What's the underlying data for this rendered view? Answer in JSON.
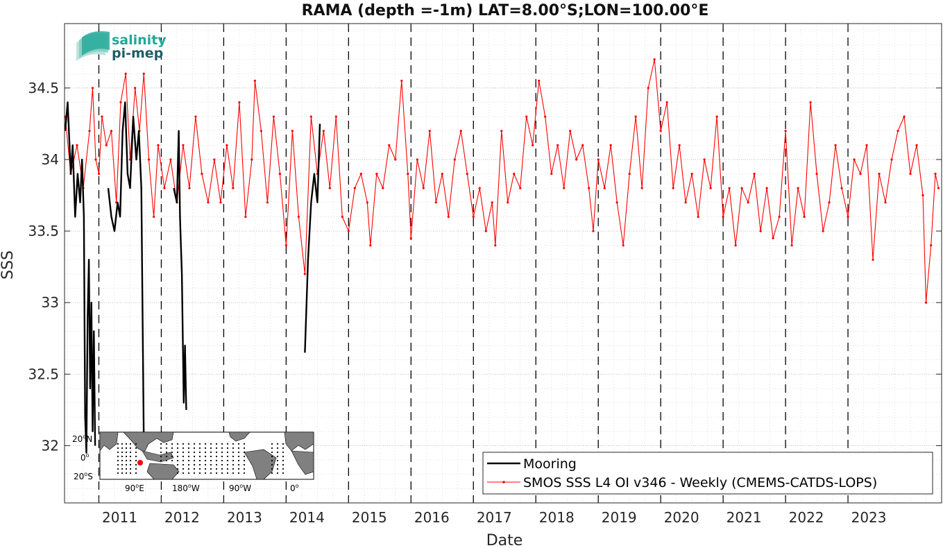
{
  "chart_data": {
    "type": "line",
    "title": "RAMA (depth =-1m) LAT=8.00°S;LON=100.00°E",
    "xlabel": "Date",
    "ylabel": "SSS",
    "xlim": [
      2010.45,
      2024.5
    ],
    "ylim": [
      31.6,
      34.95
    ],
    "grid": true,
    "legend_position": "bottom-right",
    "x_tick_labels": [
      "2011",
      "2012",
      "2013",
      "2014",
      "2015",
      "2016",
      "2017",
      "2018",
      "2019",
      "2020",
      "2021",
      "2022",
      "2023"
    ],
    "x_ticks": [
      2011,
      2012,
      2013,
      2014,
      2015,
      2016,
      2017,
      2018,
      2019,
      2020,
      2021,
      2022,
      2023
    ],
    "y_tick_labels": [
      "32",
      "32.5",
      "33",
      "33.5",
      "34",
      "34.5"
    ],
    "y_ticks": [
      32,
      32.5,
      33,
      33.5,
      34,
      34.5
    ],
    "year_dividers": [
      2011,
      2012,
      2013,
      2014,
      2015,
      2016,
      2017,
      2018,
      2019,
      2020,
      2021,
      2022,
      2023
    ],
    "series": [
      {
        "name": "Mooring",
        "color": "#000000",
        "segments": [
          [
            [
              2010.46,
              34.2
            ],
            [
              2010.5,
              34.4
            ],
            [
              2010.55,
              33.9
            ],
            [
              2010.58,
              34.1
            ],
            [
              2010.62,
              33.6
            ],
            [
              2010.66,
              33.9
            ],
            [
              2010.7,
              33.7
            ],
            [
              2010.73,
              34.0
            ],
            [
              2010.76,
              33.6
            ],
            [
              2010.78,
              32.2
            ],
            [
              2010.8,
              31.95
            ],
            [
              2010.82,
              32.9
            ],
            [
              2010.84,
              33.3
            ],
            [
              2010.86,
              32.4
            ],
            [
              2010.88,
              33.0
            ],
            [
              2010.9,
              32.1
            ],
            [
              2010.92,
              32.8
            ],
            [
              2010.94,
              32.0
            ]
          ],
          [
            [
              2011.15,
              33.8
            ],
            [
              2011.2,
              33.6
            ],
            [
              2011.25,
              33.5
            ],
            [
              2011.3,
              33.7
            ],
            [
              2011.34,
              33.6
            ],
            [
              2011.38,
              34.2
            ],
            [
              2011.42,
              34.4
            ],
            [
              2011.46,
              33.9
            ],
            [
              2011.5,
              33.8
            ],
            [
              2011.55,
              34.3
            ],
            [
              2011.6,
              34.0
            ],
            [
              2011.64,
              34.2
            ],
            [
              2011.68,
              33.8
            ],
            [
              2011.72,
              32.0
            ]
          ],
          [
            [
              2012.2,
              33.8
            ],
            [
              2012.25,
              33.7
            ],
            [
              2012.28,
              34.2
            ],
            [
              2012.3,
              33.6
            ],
            [
              2012.33,
              33.2
            ],
            [
              2012.36,
              32.3
            ],
            [
              2012.38,
              32.7
            ],
            [
              2012.4,
              32.25
            ]
          ],
          [
            [
              2014.3,
              32.65
            ],
            [
              2014.35,
              33.3
            ],
            [
              2014.4,
              33.7
            ],
            [
              2014.45,
              33.9
            ],
            [
              2014.5,
              33.7
            ],
            [
              2014.54,
              34.25
            ]
          ]
        ]
      },
      {
        "name": "SMOS SSS L4 OI v346 - Weekly (CMEMS-CATDS-LOPS)",
        "color": "#ff0000",
        "points": [
          [
            2010.46,
            34.3
          ],
          [
            2010.55,
            33.9
          ],
          [
            2010.65,
            34.1
          ],
          [
            2010.75,
            33.8
          ],
          [
            2010.85,
            34.2
          ],
          [
            2010.9,
            34.5
          ],
          [
            2010.95,
            34.0
          ],
          [
            2011.0,
            33.9
          ],
          [
            2011.05,
            34.3
          ],
          [
            2011.12,
            34.1
          ],
          [
            2011.2,
            34.2
          ],
          [
            2011.28,
            33.7
          ],
          [
            2011.35,
            34.4
          ],
          [
            2011.43,
            34.6
          ],
          [
            2011.5,
            34.0
          ],
          [
            2011.58,
            34.5
          ],
          [
            2011.65,
            34.2
          ],
          [
            2011.72,
            34.6
          ],
          [
            2011.8,
            34.0
          ],
          [
            2011.88,
            33.6
          ],
          [
            2011.95,
            34.1
          ],
          [
            2012.05,
            33.8
          ],
          [
            2012.15,
            34.0
          ],
          [
            2012.25,
            33.7
          ],
          [
            2012.35,
            34.1
          ],
          [
            2012.45,
            33.8
          ],
          [
            2012.55,
            34.3
          ],
          [
            2012.65,
            33.9
          ],
          [
            2012.75,
            33.7
          ],
          [
            2012.85,
            34.0
          ],
          [
            2012.95,
            33.7
          ],
          [
            2013.05,
            34.1
          ],
          [
            2013.15,
            33.8
          ],
          [
            2013.25,
            34.4
          ],
          [
            2013.35,
            33.6
          ],
          [
            2013.45,
            34.0
          ],
          [
            2013.5,
            34.55
          ],
          [
            2013.6,
            34.2
          ],
          [
            2013.7,
            33.7
          ],
          [
            2013.8,
            34.3
          ],
          [
            2013.9,
            33.9
          ],
          [
            2014.0,
            33.4
          ],
          [
            2014.1,
            34.2
          ],
          [
            2014.2,
            33.6
          ],
          [
            2014.3,
            33.2
          ],
          [
            2014.4,
            34.3
          ],
          [
            2014.5,
            33.9
          ],
          [
            2014.6,
            34.2
          ],
          [
            2014.7,
            33.8
          ],
          [
            2014.8,
            34.3
          ],
          [
            2014.9,
            33.6
          ],
          [
            2015.0,
            33.5
          ],
          [
            2015.1,
            33.8
          ],
          [
            2015.2,
            33.9
          ],
          [
            2015.3,
            33.7
          ],
          [
            2015.35,
            33.4
          ],
          [
            2015.45,
            33.9
          ],
          [
            2015.55,
            33.8
          ],
          [
            2015.65,
            34.1
          ],
          [
            2015.75,
            34.0
          ],
          [
            2015.85,
            34.55
          ],
          [
            2015.95,
            33.9
          ],
          [
            2016.0,
            33.45
          ],
          [
            2016.1,
            34.0
          ],
          [
            2016.2,
            33.8
          ],
          [
            2016.3,
            34.2
          ],
          [
            2016.4,
            33.7
          ],
          [
            2016.5,
            33.9
          ],
          [
            2016.6,
            33.6
          ],
          [
            2016.7,
            34.0
          ],
          [
            2016.8,
            34.2
          ],
          [
            2016.9,
            33.9
          ],
          [
            2017.0,
            33.6
          ],
          [
            2017.1,
            33.8
          ],
          [
            2017.2,
            33.5
          ],
          [
            2017.3,
            33.7
          ],
          [
            2017.35,
            33.4
          ],
          [
            2017.45,
            34.2
          ],
          [
            2017.55,
            33.7
          ],
          [
            2017.65,
            33.9
          ],
          [
            2017.75,
            33.8
          ],
          [
            2017.85,
            34.3
          ],
          [
            2017.95,
            34.1
          ],
          [
            2018.05,
            34.55
          ],
          [
            2018.15,
            34.3
          ],
          [
            2018.25,
            33.9
          ],
          [
            2018.35,
            34.1
          ],
          [
            2018.45,
            33.8
          ],
          [
            2018.55,
            34.2
          ],
          [
            2018.65,
            34.0
          ],
          [
            2018.75,
            34.1
          ],
          [
            2018.85,
            33.8
          ],
          [
            2018.92,
            33.5
          ],
          [
            2019.0,
            34.0
          ],
          [
            2019.1,
            33.8
          ],
          [
            2019.2,
            34.1
          ],
          [
            2019.3,
            33.7
          ],
          [
            2019.4,
            33.4
          ],
          [
            2019.5,
            33.9
          ],
          [
            2019.6,
            34.3
          ],
          [
            2019.7,
            33.8
          ],
          [
            2019.8,
            34.5
          ],
          [
            2019.9,
            34.7
          ],
          [
            2020.0,
            34.2
          ],
          [
            2020.1,
            34.4
          ],
          [
            2020.2,
            33.8
          ],
          [
            2020.3,
            34.1
          ],
          [
            2020.4,
            33.7
          ],
          [
            2020.5,
            33.9
          ],
          [
            2020.6,
            33.6
          ],
          [
            2020.7,
            34.0
          ],
          [
            2020.8,
            33.8
          ],
          [
            2020.9,
            34.3
          ],
          [
            2021.0,
            33.6
          ],
          [
            2021.1,
            33.8
          ],
          [
            2021.2,
            33.4
          ],
          [
            2021.3,
            33.8
          ],
          [
            2021.4,
            33.7
          ],
          [
            2021.5,
            33.9
          ],
          [
            2021.6,
            33.5
          ],
          [
            2021.7,
            33.8
          ],
          [
            2021.8,
            33.45
          ],
          [
            2021.9,
            33.6
          ],
          [
            2022.0,
            34.2
          ],
          [
            2022.1,
            33.4
          ],
          [
            2022.2,
            33.8
          ],
          [
            2022.3,
            33.6
          ],
          [
            2022.4,
            34.4
          ],
          [
            2022.5,
            33.9
          ],
          [
            2022.6,
            33.5
          ],
          [
            2022.7,
            33.7
          ],
          [
            2022.8,
            34.1
          ],
          [
            2022.9,
            33.8
          ],
          [
            2023.0,
            33.6
          ],
          [
            2023.1,
            34.0
          ],
          [
            2023.2,
            33.9
          ],
          [
            2023.3,
            34.1
          ],
          [
            2023.4,
            33.3
          ],
          [
            2023.5,
            33.9
          ],
          [
            2023.6,
            33.7
          ],
          [
            2023.7,
            34.0
          ],
          [
            2023.8,
            34.2
          ],
          [
            2023.9,
            34.3
          ],
          [
            2024.0,
            33.9
          ],
          [
            2024.1,
            34.1
          ],
          [
            2024.2,
            33.75
          ],
          [
            2024.25,
            33.0
          ],
          [
            2024.33,
            33.4
          ],
          [
            2024.4,
            33.9
          ],
          [
            2024.45,
            33.8
          ]
        ]
      }
    ]
  },
  "logo": {
    "line1": "salinity",
    "line2": "pi-mep",
    "color_primary": "#21a898",
    "color_secondary": "#1f5d66"
  },
  "inset_map": {
    "lat_labels": [
      "20",
      "N",
      "0",
      "20",
      "S"
    ],
    "lon_labels": [
      {
        "deg": "90",
        "suffix": "E"
      },
      {
        "deg": "180",
        "suffix": "W"
      },
      {
        "deg": "90",
        "suffix": "W"
      },
      {
        "deg": "0",
        "suffix": ""
      }
    ],
    "land_color": "#808080",
    "ocean_color": "#ffffff",
    "marker_color": "#ff0000"
  }
}
